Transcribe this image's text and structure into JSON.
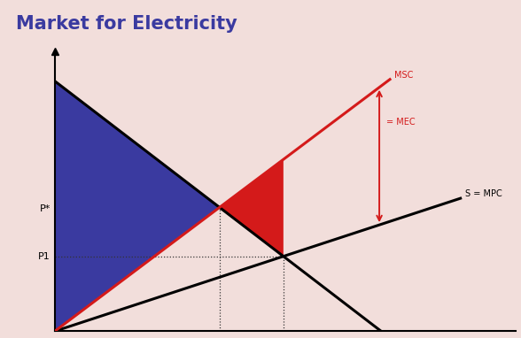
{
  "chart_data": {
    "type": "line",
    "title": "Market for Electricity",
    "series": [
      {
        "color": "#000000",
        "x": [
          0,
          70.8
        ],
        "values": [
          89.4,
          0
        ]
      },
      {
        "name": "S = MPC",
        "color": "#000000",
        "x": [
          0,
          88
        ],
        "values": [
          0,
          47.5
        ]
      },
      {
        "name": "MSC",
        "color": "#d41a1a",
        "x": [
          0,
          72.7
        ],
        "values": [
          0,
          90
        ]
      }
    ],
    "annotations": [
      {
        "text": "= MEC",
        "x": 70.4
      }
    ],
    "xlim": [
      0,
      100
    ],
    "ylim": [
      0,
      100
    ],
    "xticks": [],
    "yticks": [
      {
        "value": 27,
        "label": "P1"
      },
      {
        "value": 44,
        "label": "P*"
      }
    ],
    "tick_labels": "y",
    "grid": false
  }
}
